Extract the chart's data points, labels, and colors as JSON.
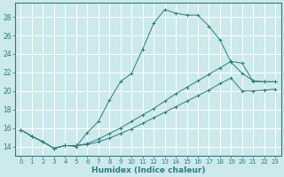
{
  "xlabel": "Humidex (Indice chaleur)",
  "background_color": "#cce9ec",
  "grid_color": "#ffffff",
  "line_color": "#2d7d7d",
  "xlim_min": -0.5,
  "xlim_max": 23.5,
  "ylim_min": 13.0,
  "ylim_max": 29.5,
  "yticks": [
    14,
    16,
    18,
    20,
    22,
    24,
    26,
    28
  ],
  "xticks": [
    0,
    1,
    2,
    3,
    4,
    5,
    6,
    7,
    8,
    9,
    10,
    11,
    12,
    13,
    14,
    15,
    16,
    17,
    18,
    19,
    20,
    21,
    22,
    23
  ],
  "line1_x": [
    0,
    1,
    2,
    3,
    4,
    5,
    6,
    7,
    8,
    9,
    10,
    11,
    12,
    13,
    14,
    15,
    16,
    17,
    18,
    19,
    20,
    21,
    22,
    23
  ],
  "line1_y": [
    15.8,
    15.1,
    14.5,
    13.8,
    14.1,
    14.0,
    15.5,
    16.7,
    19.0,
    21.0,
    21.9,
    24.5,
    27.3,
    28.8,
    28.4,
    28.2,
    28.2,
    27.0,
    25.5,
    23.1,
    21.9,
    21.1,
    21.0,
    21.0
  ],
  "line2_x": [
    0,
    1,
    2,
    3,
    4,
    5,
    6,
    7,
    8,
    9,
    10,
    11,
    12,
    13,
    14,
    15,
    16,
    17,
    18,
    19,
    20,
    21,
    22,
    23
  ],
  "line2_y": [
    15.8,
    15.1,
    14.5,
    13.8,
    14.1,
    14.1,
    14.3,
    14.8,
    15.4,
    16.0,
    16.7,
    17.4,
    18.1,
    18.9,
    19.7,
    20.4,
    21.1,
    21.8,
    22.5,
    23.2,
    23.0,
    21.0,
    21.0,
    21.0
  ],
  "line3_x": [
    0,
    1,
    2,
    3,
    4,
    5,
    6,
    7,
    8,
    9,
    10,
    11,
    12,
    13,
    14,
    15,
    16,
    17,
    18,
    19,
    20,
    21,
    22,
    23
  ],
  "line3_y": [
    15.8,
    15.1,
    14.5,
    13.8,
    14.1,
    14.1,
    14.2,
    14.5,
    14.9,
    15.4,
    15.9,
    16.5,
    17.1,
    17.7,
    18.3,
    18.9,
    19.5,
    20.1,
    20.8,
    21.4,
    20.0,
    20.0,
    20.1,
    20.2
  ]
}
